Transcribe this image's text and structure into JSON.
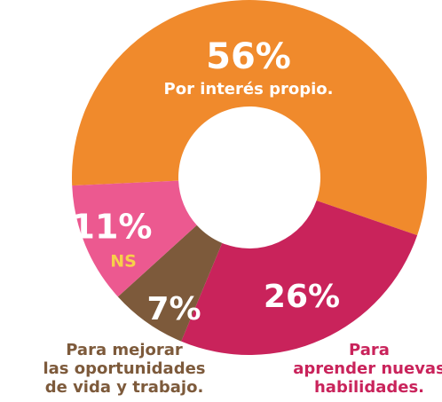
{
  "chart_data": {
    "type": "donut",
    "categories": [
      [
        "Por interés propio."
      ],
      [
        "Para",
        "aprender nuevas",
        "habilidades."
      ],
      [
        "Para mejorar",
        "las oportunidades",
        "de vida y trabajo."
      ],
      [
        "NS"
      ]
    ],
    "values": [
      56,
      26,
      7,
      11
    ],
    "value_labels": [
      "56%",
      "26%",
      "7%",
      "11%"
    ],
    "colors": [
      "#f08a2c",
      "#c9235b",
      "#7d5a3b",
      "#ec5990"
    ]
  }
}
